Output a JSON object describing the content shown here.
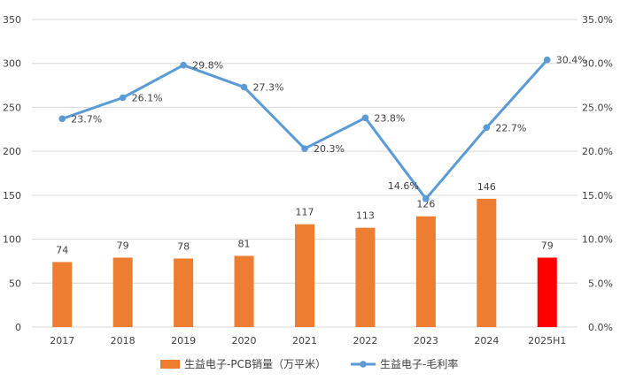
{
  "chart_data": {
    "type": "bar",
    "title": "",
    "xlabel": "",
    "ylabel": "",
    "categories": [
      "2017",
      "2018",
      "2019",
      "2020",
      "2021",
      "2022",
      "2023",
      "2024",
      "2025H1"
    ],
    "series": [
      {
        "name": "生益电子-PCB销量（万平米）",
        "type": "bar",
        "axis": "left",
        "values": [
          74,
          79,
          78,
          81,
          117,
          113,
          126,
          146,
          79
        ],
        "color": "#ED7D31",
        "highlight_color": "#FF0000",
        "highlight_category": "2025H1"
      },
      {
        "name": "生益电子-毛利率",
        "type": "line",
        "axis": "right",
        "values": [
          23.7,
          26.1,
          29.8,
          27.3,
          20.3,
          23.8,
          14.6,
          22.7,
          30.4
        ],
        "labels": [
          "23.7%",
          "26.1%",
          "29.8%",
          "27.3%",
          "20.3%",
          "23.8%",
          "14.6%",
          "22.7%",
          "30.4%"
        ],
        "color": "#5B9BD5"
      }
    ],
    "y_left": {
      "min": 0,
      "max": 350,
      "step": 50,
      "ticks": [
        "0",
        "50",
        "100",
        "150",
        "200",
        "250",
        "300",
        "350"
      ]
    },
    "y_right": {
      "min": 0,
      "max": 35,
      "step": 5,
      "ticks": [
        "0.0%",
        "5.0%",
        "10.0%",
        "15.0%",
        "20.0%",
        "25.0%",
        "30.0%",
        "35.0%"
      ]
    },
    "grid": true,
    "legend_position": "bottom"
  }
}
